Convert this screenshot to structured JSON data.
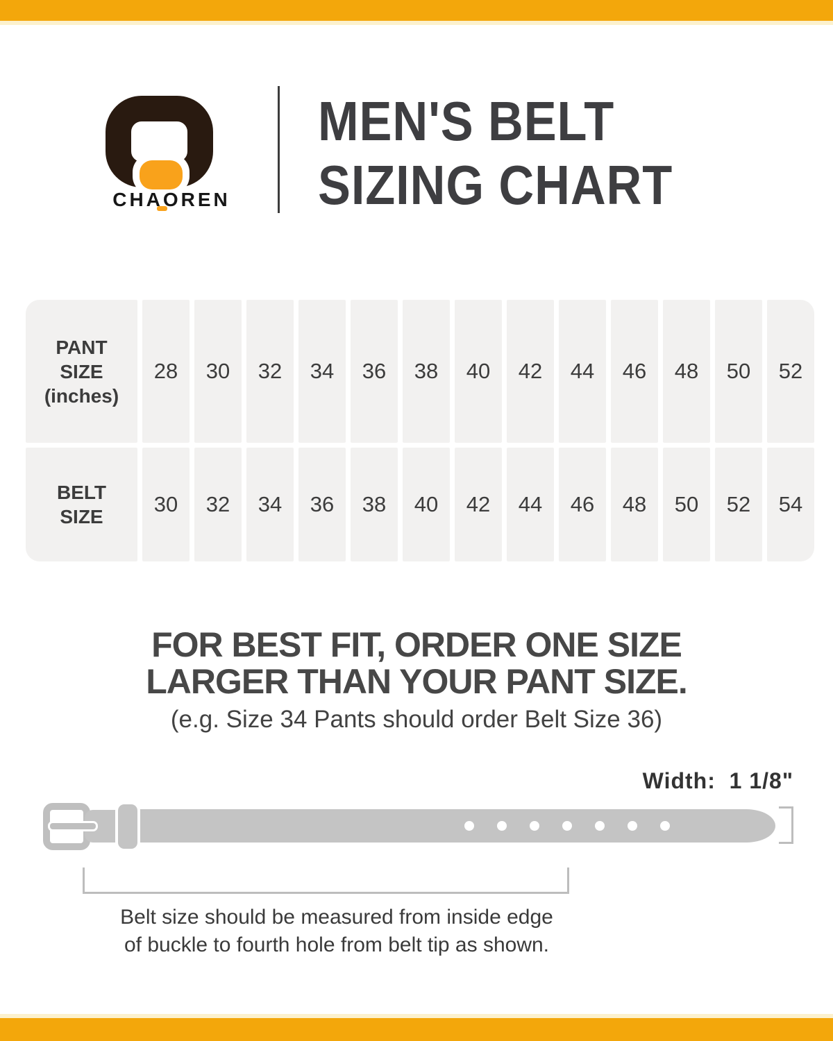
{
  "brand": {
    "logo_text": "CHAOREN"
  },
  "title": {
    "line1": "MEN'S BELT",
    "line2": "SIZING CHART"
  },
  "size_table": {
    "row1_header_lines": [
      "PANT",
      "SIZE",
      "(inches)"
    ],
    "row2_header_lines": [
      "BELT",
      "SIZE"
    ],
    "pant_sizes": [
      "28",
      "30",
      "32",
      "34",
      "36",
      "38",
      "40",
      "42",
      "44",
      "46",
      "48",
      "50",
      "52"
    ],
    "belt_sizes": [
      "30",
      "32",
      "34",
      "36",
      "38",
      "40",
      "42",
      "44",
      "46",
      "48",
      "50",
      "52",
      "54"
    ]
  },
  "fit_note": {
    "heading_line1": "FOR BEST FIT, ORDER ONE SIZE",
    "heading_line2": "LARGER THAN YOUR PANT SIZE.",
    "example": "(e.g. Size 34 Pants should order Belt Size 36)"
  },
  "belt_diagram": {
    "width_label": "Width:  1 1/8\"",
    "hole_count": 7
  },
  "caption": {
    "line1": "Belt size should be measured from inside edge",
    "line2": "of buckle to fourth hole from belt tip as shown."
  },
  "colors": {
    "band_orange": "#F3A70B",
    "logo_dark": "#291A10",
    "logo_orange": "#F9A21B",
    "text_dark": "#3E3E41",
    "table_cell_bg": "#F2F1F0",
    "belt_gray": "#C4C4C4",
    "bracket_gray": "#BDBDBD"
  }
}
